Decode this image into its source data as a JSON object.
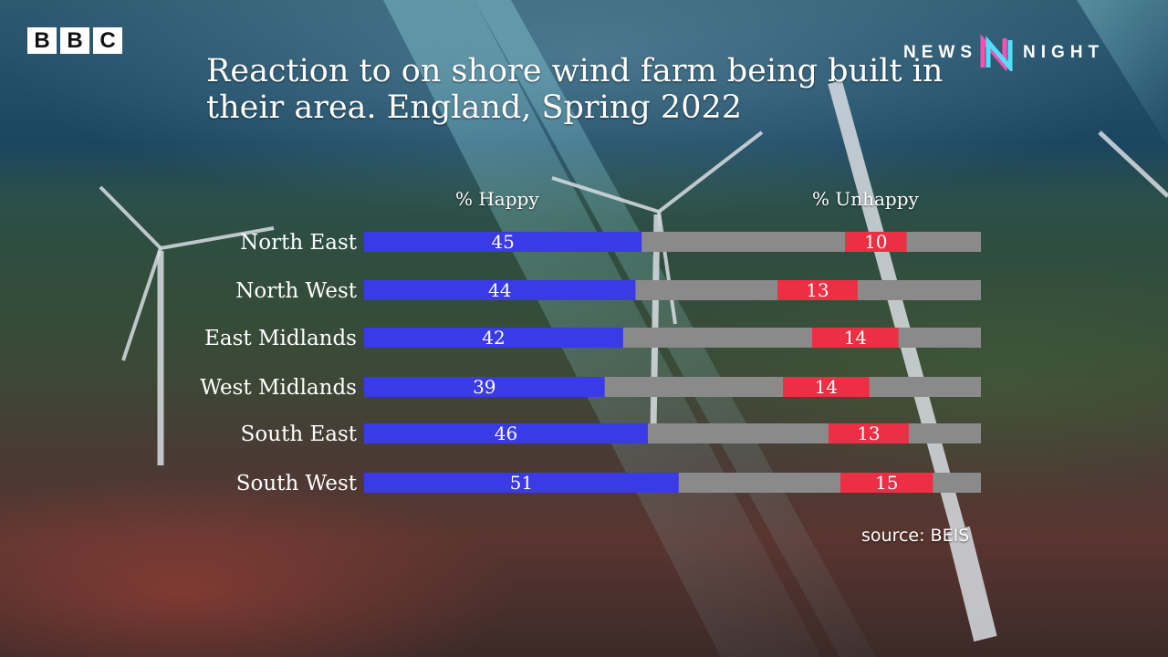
{
  "brand": {
    "bbc_letters": [
      "B",
      "B",
      "C"
    ],
    "programme_left": "NEWS",
    "programme_right": "NIGHT"
  },
  "colors": {
    "happy": "#3a3ae6",
    "unhappy": "#ec2f44",
    "track": "#8a8a8a",
    "text": "#ffffff"
  },
  "chart_data": {
    "type": "bar",
    "title": "Reaction to on shore wind farm being built in their area. England, Spring 2022",
    "categories": [
      "North East",
      "North West",
      "East Midlands",
      "West Midlands",
      "South East",
      "South West"
    ],
    "series": [
      {
        "name": "% Happy",
        "values": [
          45,
          44,
          42,
          39,
          46,
          51
        ]
      },
      {
        "name": "% Unhappy",
        "values": [
          10,
          13,
          14,
          14,
          13,
          15
        ]
      }
    ],
    "ylim": [
      0,
      100
    ],
    "source": "source: BEIS"
  }
}
